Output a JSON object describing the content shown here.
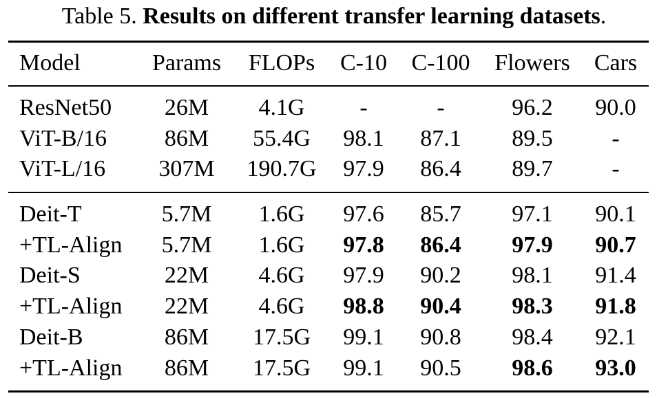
{
  "caption": {
    "prefix": "Table 5. ",
    "title": "Results on different transfer learning datasets",
    "suffix": "."
  },
  "columns": [
    "Model",
    "Params",
    "FLOPs",
    "C-10",
    "C-100",
    "Flowers",
    "Cars"
  ],
  "groups": [
    {
      "rows": [
        {
          "cells": [
            "ResNet50",
            "26M",
            "4.1G",
            "-",
            "-",
            "96.2",
            "90.0"
          ],
          "bold": []
        },
        {
          "cells": [
            "ViT-B/16",
            "86M",
            "55.4G",
            "98.1",
            "87.1",
            "89.5",
            "-"
          ],
          "bold": []
        },
        {
          "cells": [
            "ViT-L/16",
            "307M",
            "190.7G",
            "97.9",
            "86.4",
            "89.7",
            "-"
          ],
          "bold": []
        }
      ]
    },
    {
      "rows": [
        {
          "cells": [
            "Deit-T",
            "5.7M",
            "1.6G",
            "97.6",
            "85.7",
            "97.1",
            "90.1"
          ],
          "bold": []
        },
        {
          "cells": [
            "+TL-Align",
            "5.7M",
            "1.6G",
            "97.8",
            "86.4",
            "97.9",
            "90.7"
          ],
          "bold": [
            3,
            4,
            5,
            6
          ]
        },
        {
          "cells": [
            "Deit-S",
            "22M",
            "4.6G",
            "97.9",
            "90.2",
            "98.1",
            "91.4"
          ],
          "bold": []
        },
        {
          "cells": [
            "+TL-Align",
            "22M",
            "4.6G",
            "98.8",
            "90.4",
            "98.3",
            "91.8"
          ],
          "bold": [
            3,
            4,
            5,
            6
          ]
        },
        {
          "cells": [
            "Deit-B",
            "86M",
            "17.5G",
            "99.1",
            "90.8",
            "98.4",
            "92.1"
          ],
          "bold": []
        },
        {
          "cells": [
            "+TL-Align",
            "86M",
            "17.5G",
            "99.1",
            "90.5",
            "98.6",
            "93.0"
          ],
          "bold": [
            5,
            6
          ]
        }
      ]
    }
  ]
}
